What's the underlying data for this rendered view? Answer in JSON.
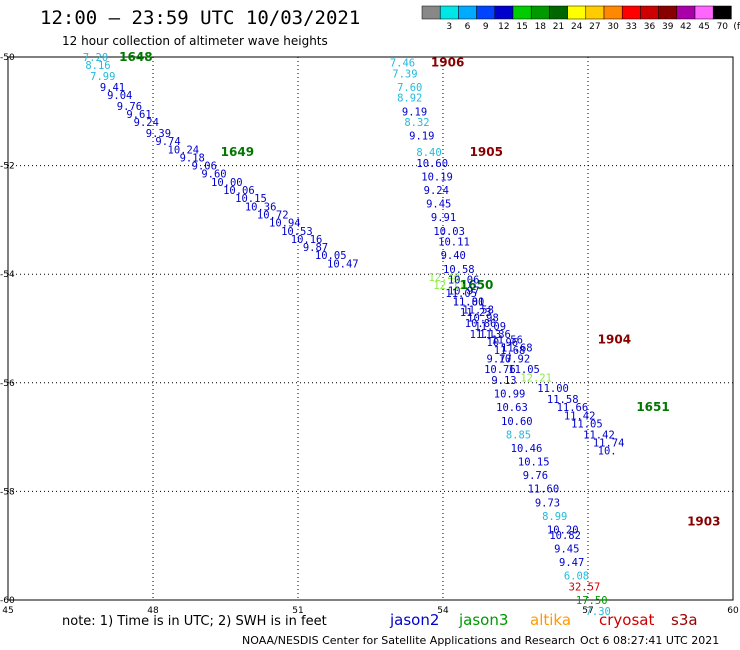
{
  "title": "12:00 – 23:59 UTC 10/03/2021",
  "subtitle": "12 hour collection of altimeter wave heights",
  "legend_unit": "(ft)",
  "footer": {
    "note": "note:  1) Time is in UTC; 2) SWH is in feet",
    "credit": "NOAA/NESDIS Center for Satellite Applications and Research",
    "timestamp": "Oct  6 08:27:41 UTC 2021"
  },
  "satellites": [
    {
      "name": "jason2",
      "color": "#0000cc"
    },
    {
      "name": "jason3",
      "color": "#009900"
    },
    {
      "name": "altika",
      "color": "#ff9900"
    },
    {
      "name": "cryosat",
      "color": "#cc0000"
    },
    {
      "name": "s3a",
      "color": "#990000"
    }
  ],
  "colorbar": [
    {
      "label": "",
      "color": "#888888"
    },
    {
      "label": "3",
      "color": "#00e6e6"
    },
    {
      "label": "6",
      "color": "#00aaff"
    },
    {
      "label": "9",
      "color": "#0044ff"
    },
    {
      "label": "12",
      "color": "#0000cc"
    },
    {
      "label": "15",
      "color": "#00cc00"
    },
    {
      "label": "18",
      "color": "#009900"
    },
    {
      "label": "21",
      "color": "#006600"
    },
    {
      "label": "24",
      "color": "#ffff00"
    },
    {
      "label": "27",
      "color": "#ffcc00"
    },
    {
      "label": "30",
      "color": "#ff8800"
    },
    {
      "label": "33",
      "color": "#ff0000"
    },
    {
      "label": "36",
      "color": "#cc0000"
    },
    {
      "label": "39",
      "color": "#880000"
    },
    {
      "label": "42",
      "color": "#aa00aa"
    },
    {
      "label": "45",
      "color": "#ff66ff"
    },
    {
      "label": "70",
      "color": "#000000"
    }
  ],
  "chart_data": {
    "type": "scatter",
    "title": "12:00 – 23:59 UTC 10/03/2021",
    "subtitle": "12 hour collection of altimeter wave heights",
    "xlabel": "",
    "ylabel": "",
    "xlim": [
      45,
      60
    ],
    "ylim": [
      -60,
      -50
    ],
    "x_ticks": [
      "45",
      "48",
      "51",
      "54",
      "57",
      "60"
    ],
    "y_ticks": [
      "-50",
      "-52",
      "-54",
      "-56",
      "-58",
      "-60"
    ],
    "grid": true,
    "tracks": [
      {
        "pass": "1648",
        "pass_color": "#007700",
        "pass_x": 47.3,
        "pass_y": -50.0,
        "points": [
          {
            "x": 46.55,
            "y": -50.0,
            "v": "7.20",
            "c": "#22bbdd"
          },
          {
            "x": 46.6,
            "y": -50.15,
            "v": "8.16",
            "c": "#22bbdd"
          },
          {
            "x": 46.7,
            "y": -50.35,
            "v": "7.99",
            "c": "#22bbdd"
          },
          {
            "x": 46.9,
            "y": -50.55,
            "v": "9.41",
            "c": "#0000cc"
          },
          {
            "x": 47.05,
            "y": -50.7,
            "v": "9.04",
            "c": "#0000cc"
          },
          {
            "x": 47.25,
            "y": -50.9,
            "v": "9.76",
            "c": "#0000cc"
          },
          {
            "x": 47.45,
            "y": -51.05,
            "v": "9.61",
            "c": "#0000cc"
          },
          {
            "x": 47.6,
            "y": -51.2,
            "v": "9.24",
            "c": "#0000cc"
          },
          {
            "x": 47.85,
            "y": -51.4,
            "v": "9.39",
            "c": "#0000cc"
          },
          {
            "x": 48.05,
            "y": -51.55,
            "v": "9.74",
            "c": "#0000cc"
          },
          {
            "x": 48.3,
            "y": -51.7,
            "v": "10.24",
            "c": "#0000cc"
          },
          {
            "x": 48.55,
            "y": -51.85,
            "v": "9.18",
            "c": "#0000cc"
          },
          {
            "x": 48.8,
            "y": -52.0,
            "v": "9.06",
            "c": "#0000cc"
          },
          {
            "x": 49.0,
            "y": -52.15,
            "v": "9.60",
            "c": "#0000cc"
          },
          {
            "x": 49.2,
            "y": -52.3,
            "v": "10.00",
            "c": "#0000cc"
          },
          {
            "x": 49.45,
            "y": -52.45,
            "v": "10.06",
            "c": "#0000cc"
          },
          {
            "x": 49.7,
            "y": -52.6,
            "v": "10.15",
            "c": "#0000cc"
          },
          {
            "x": 49.9,
            "y": -52.75,
            "v": "10.36",
            "c": "#0000cc"
          },
          {
            "x": 50.15,
            "y": -52.9,
            "v": "10.72",
            "c": "#0000cc"
          },
          {
            "x": 50.4,
            "y": -53.05,
            "v": "10.94",
            "c": "#0000cc"
          },
          {
            "x": 50.65,
            "y": -53.2,
            "v": "10.53",
            "c": "#0000cc"
          },
          {
            "x": 50.85,
            "y": -53.35,
            "v": "10.16",
            "c": "#0000cc"
          },
          {
            "x": 51.1,
            "y": -53.5,
            "v": "9.87",
            "c": "#0000cc"
          },
          {
            "x": 51.35,
            "y": -53.65,
            "v": "10.05",
            "c": "#0000cc"
          },
          {
            "x": 51.6,
            "y": -53.8,
            "v": "10.47",
            "c": "#0000cc"
          }
        ]
      },
      {
        "pass": "1649",
        "pass_color": "#007700",
        "pass_x": 49.4,
        "pass_y": -51.75,
        "points": []
      },
      {
        "pass": "1650",
        "pass_color": "#007700",
        "pass_x": 54.35,
        "pass_y": -54.2,
        "points": [
          {
            "x": 53.7,
            "y": -54.05,
            "v": "12.40",
            "c": "#88ee44"
          },
          {
            "x": 53.8,
            "y": -54.2,
            "v": "12.11",
            "c": "#88ee44"
          },
          {
            "x": 54.05,
            "y": -54.35,
            "v": "11.05",
            "c": "#0000cc"
          },
          {
            "x": 54.2,
            "y": -54.5,
            "v": "11.00",
            "c": "#0000cc"
          },
          {
            "x": 54.4,
            "y": -54.65,
            "v": "11.58",
            "c": "#0000cc"
          },
          {
            "x": 54.5,
            "y": -54.8,
            "v": "10.98",
            "c": "#0000cc"
          },
          {
            "x": 54.65,
            "y": -54.95,
            "v": "11.09",
            "c": "#0000cc"
          },
          {
            "x": 54.75,
            "y": -55.1,
            "v": "11.36",
            "c": "#0000cc"
          },
          {
            "x": 54.9,
            "y": -55.25,
            "v": "10.96",
            "c": "#0000cc"
          },
          {
            "x": 55.05,
            "y": -55.4,
            "v": "11.68",
            "c": "#0000cc"
          },
          {
            "x": 55.15,
            "y": -55.55,
            "v": "10.92",
            "c": "#0000cc"
          },
          {
            "x": 55.35,
            "y": -55.75,
            "v": "11.05",
            "c": "#0000cc"
          },
          {
            "x": 55.6,
            "y": -55.9,
            "v": "12.21",
            "c": "#88ee44"
          },
          {
            "x": 55.95,
            "y": -56.1,
            "v": "11.00",
            "c": "#0000cc"
          },
          {
            "x": 56.15,
            "y": -56.3,
            "v": "11.58",
            "c": "#0000cc"
          },
          {
            "x": 56.35,
            "y": -56.45,
            "v": "11.66",
            "c": "#0000cc"
          },
          {
            "x": 56.5,
            "y": -56.6,
            "v": "11.42",
            "c": "#0000cc"
          },
          {
            "x": 56.65,
            "y": -56.75,
            "v": "11.05",
            "c": "#0000cc"
          },
          {
            "x": 56.9,
            "y": -56.95,
            "v": "11.42",
            "c": "#0000cc"
          },
          {
            "x": 57.1,
            "y": -57.1,
            "v": "11.74",
            "c": "#0000cc"
          },
          {
            "x": 57.2,
            "y": -57.25,
            "v": "10.",
            "c": "#0000cc"
          }
        ]
      },
      {
        "pass": "1651",
        "pass_color": "#007700",
        "pass_x": 58.0,
        "pass_y": -56.45,
        "points": []
      },
      {
        "pass": "1906",
        "pass_color": "#880000",
        "pass_x": 53.75,
        "pass_y": -50.1,
        "points": [
          {
            "x": 52.9,
            "y": -50.1,
            "v": "7.46",
            "c": "#22bbdd"
          },
          {
            "x": 52.95,
            "y": -50.3,
            "v": "7.39",
            "c": "#22bbdd"
          },
          {
            "x": 53.05,
            "y": -50.55,
            "v": "7.60",
            "c": "#22bbdd"
          },
          {
            "x": 53.05,
            "y": -50.75,
            "v": "8.92",
            "c": "#22bbdd"
          },
          {
            "x": 53.15,
            "y": -51.0,
            "v": "9.19",
            "c": "#0000cc"
          },
          {
            "x": 53.2,
            "y": -51.2,
            "v": "8.32",
            "c": "#22bbdd"
          },
          {
            "x": 53.3,
            "y": -51.45,
            "v": "9.19",
            "c": "#0000cc"
          }
        ]
      },
      {
        "pass": "1905",
        "pass_color": "#880000",
        "pass_x": 54.55,
        "pass_y": -51.75,
        "points": [
          {
            "x": 53.45,
            "y": -51.75,
            "v": "8.40",
            "c": "#22bbdd"
          },
          {
            "x": 53.45,
            "y": -51.95,
            "v": "10.60",
            "c": "#0000cc"
          },
          {
            "x": 53.55,
            "y": -52.2,
            "v": "10.19",
            "c": "#0000cc"
          },
          {
            "x": 53.6,
            "y": -52.45,
            "v": "9.24",
            "c": "#0000cc"
          },
          {
            "x": 53.65,
            "y": -52.7,
            "v": "9.45",
            "c": "#0000cc"
          },
          {
            "x": 53.75,
            "y": -52.95,
            "v": "9.91",
            "c": "#0000cc"
          },
          {
            "x": 53.8,
            "y": -53.2,
            "v": "10.03",
            "c": "#0000cc"
          },
          {
            "x": 53.9,
            "y": -53.4,
            "v": "10.11",
            "c": "#0000cc"
          },
          {
            "x": 53.95,
            "y": -53.65,
            "v": "9.40",
            "c": "#0000cc"
          },
          {
            "x": 54.0,
            "y": -53.9,
            "v": "10.58",
            "c": "#0000cc"
          },
          {
            "x": 54.1,
            "y": -54.1,
            "v": "10.06",
            "c": "#0000cc"
          },
          {
            "x": 54.1,
            "y": -54.3,
            "v": "10.97",
            "c": "#0000cc"
          },
          {
            "x": 54.2,
            "y": -54.5,
            "v": "11.81",
            "c": "#0000cc"
          },
          {
            "x": 54.35,
            "y": -54.7,
            "v": "11.23",
            "c": "#0000cc"
          },
          {
            "x": 54.45,
            "y": -54.9,
            "v": "10.86",
            "c": "#0000cc"
          },
          {
            "x": 54.55,
            "y": -55.1,
            "v": "11.13",
            "c": "#0000cc"
          }
        ]
      },
      {
        "pass": "1904",
        "pass_color": "#880000",
        "pass_x": 57.2,
        "pass_y": -55.2,
        "points": [
          {
            "x": 55.0,
            "y": -55.2,
            "v": "11.56",
            "c": "#0000cc"
          },
          {
            "x": 55.2,
            "y": -55.35,
            "v": "11.68",
            "c": "#0000cc"
          },
          {
            "x": 54.9,
            "y": -55.55,
            "v": "9.77",
            "c": "#0000cc"
          },
          {
            "x": 54.85,
            "y": -55.75,
            "v": "10.76",
            "c": "#0000cc"
          },
          {
            "x": 55.0,
            "y": -55.95,
            "v": "9.13",
            "c": "#0000cc"
          },
          {
            "x": 55.05,
            "y": -56.2,
            "v": "10.99",
            "c": "#0000cc"
          },
          {
            "x": 55.1,
            "y": -56.45,
            "v": "10.63",
            "c": "#0000cc"
          },
          {
            "x": 55.2,
            "y": -56.7,
            "v": "10.60",
            "c": "#0000cc"
          },
          {
            "x": 55.3,
            "y": -56.95,
            "v": "8.85",
            "c": "#22bbdd"
          },
          {
            "x": 55.4,
            "y": -57.2,
            "v": "10.46",
            "c": "#0000cc"
          },
          {
            "x": 55.55,
            "y": -57.45,
            "v": "10.15",
            "c": "#0000cc"
          },
          {
            "x": 55.65,
            "y": -57.7,
            "v": "9.76",
            "c": "#0000cc"
          },
          {
            "x": 55.75,
            "y": -57.95,
            "v": "11.60",
            "c": "#0000cc"
          },
          {
            "x": 55.9,
            "y": -58.2,
            "v": "9.73",
            "c": "#0000cc"
          },
          {
            "x": 56.05,
            "y": -58.45,
            "v": "8.99",
            "c": "#22bbdd"
          }
        ]
      },
      {
        "pass": "1903",
        "pass_color": "#880000",
        "pass_x": 59.05,
        "pass_y": -58.55,
        "points": [
          {
            "x": 56.15,
            "y": -58.7,
            "v": "10.20",
            "c": "#0000cc"
          },
          {
            "x": 56.2,
            "y": -58.8,
            "v": "10.82",
            "c": "#0000cc"
          },
          {
            "x": 56.3,
            "y": -59.05,
            "v": "9.45",
            "c": "#0000cc"
          },
          {
            "x": 56.4,
            "y": -59.3,
            "v": "9.47",
            "c": "#0000cc"
          },
          {
            "x": 56.5,
            "y": -59.55,
            "v": "6.08",
            "c": "#22bbdd"
          },
          {
            "x": 56.6,
            "y": -59.75,
            "v": "32.57",
            "c": "#cc0000"
          },
          {
            "x": 56.75,
            "y": -60.0,
            "v": "17.50",
            "c": "#009900"
          },
          {
            "x": 56.95,
            "y": -60.2,
            "v": "7.30",
            "c": "#22bbdd"
          }
        ]
      }
    ]
  }
}
